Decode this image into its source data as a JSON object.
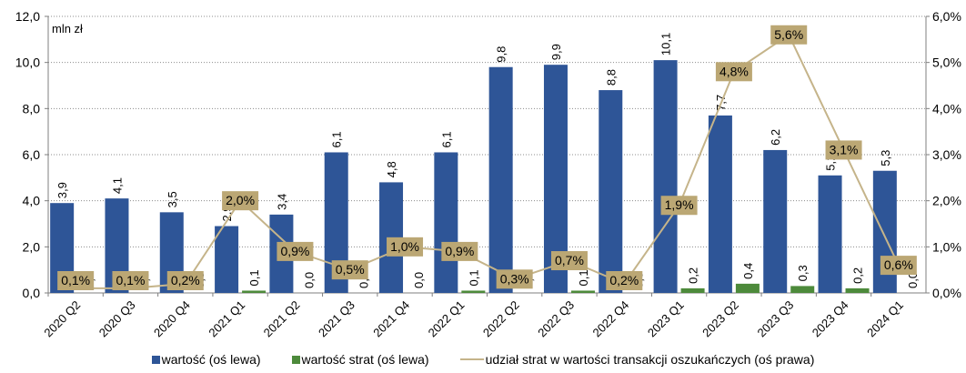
{
  "chart_data": {
    "type": "bar",
    "unit_label": "mln zł",
    "categories": [
      "2020 Q2",
      "2020 Q3",
      "2020 Q4",
      "2021 Q1",
      "2021 Q2",
      "2021 Q3",
      "2021 Q4",
      "2022 Q1",
      "2022 Q2",
      "2022 Q3",
      "2022 Q4",
      "2023 Q1",
      "2023 Q2",
      "2023 Q3",
      "2023 Q4",
      "2024 Q1"
    ],
    "series": [
      {
        "name": "wartość (oś lewa)",
        "kind": "bar",
        "axis": "left",
        "color": "#2E5597",
        "values": [
          3.9,
          4.1,
          3.5,
          2.9,
          3.4,
          6.1,
          4.8,
          6.1,
          9.8,
          9.9,
          8.8,
          10.1,
          7.7,
          6.2,
          5.1,
          5.3
        ],
        "labels": [
          "3,9",
          "4,1",
          "3,5",
          "2,9",
          "3,4",
          "6,1",
          "4,8",
          "6,1",
          "9,8",
          "9,9",
          "8,8",
          "10,1",
          "7,7",
          "6,2",
          "5,1",
          "5,3"
        ]
      },
      {
        "name": "wartość strat (oś lewa)",
        "kind": "bar",
        "axis": "left",
        "color": "#4D8A3B",
        "values": [
          0.0,
          0.0,
          0.0,
          0.1,
          0.0,
          0.0,
          0.0,
          0.1,
          0.0,
          0.1,
          0.0,
          0.2,
          0.4,
          0.3,
          0.2,
          0.0
        ],
        "labels": [
          "0,0",
          "0,0",
          "0,0",
          "0,1",
          "0,0",
          "0,0",
          "0,0",
          "0,1",
          "0,0",
          "0,1",
          "0,0",
          "0,2",
          "0,4",
          "0,3",
          "0,2",
          "0,0"
        ]
      },
      {
        "name": "udział strat w wartości transakcji oszukańczych (oś prawa)",
        "kind": "line",
        "axis": "right",
        "color": "#C5B48A",
        "values": [
          0.1,
          0.1,
          0.2,
          2.0,
          0.9,
          0.5,
          1.0,
          0.9,
          0.3,
          0.7,
          0.2,
          1.9,
          4.8,
          5.6,
          3.1,
          0.6
        ],
        "labels": [
          "0,1%",
          "0,1%",
          "0,2%",
          "2,0%",
          "0,9%",
          "0,5%",
          "1,0%",
          "0,9%",
          "0,3%",
          "0,7%",
          "0,2%",
          "1,9%",
          "4,8%",
          "5,6%",
          "3,1%",
          "0,6%"
        ]
      }
    ],
    "y_left": {
      "min": 0,
      "max": 12,
      "ticks": [
        "0,0",
        "2,0",
        "4,0",
        "6,0",
        "8,0",
        "10,0",
        "12,0"
      ]
    },
    "y_right": {
      "min": 0,
      "max": 6,
      "ticks": [
        "0,0%",
        "1,0%",
        "2,0%",
        "3,0%",
        "4,0%",
        "5,0%",
        "6,0%"
      ]
    },
    "grid": "horizontal dotted",
    "legend_position": "bottom",
    "label_box_color": "#BBA774"
  }
}
